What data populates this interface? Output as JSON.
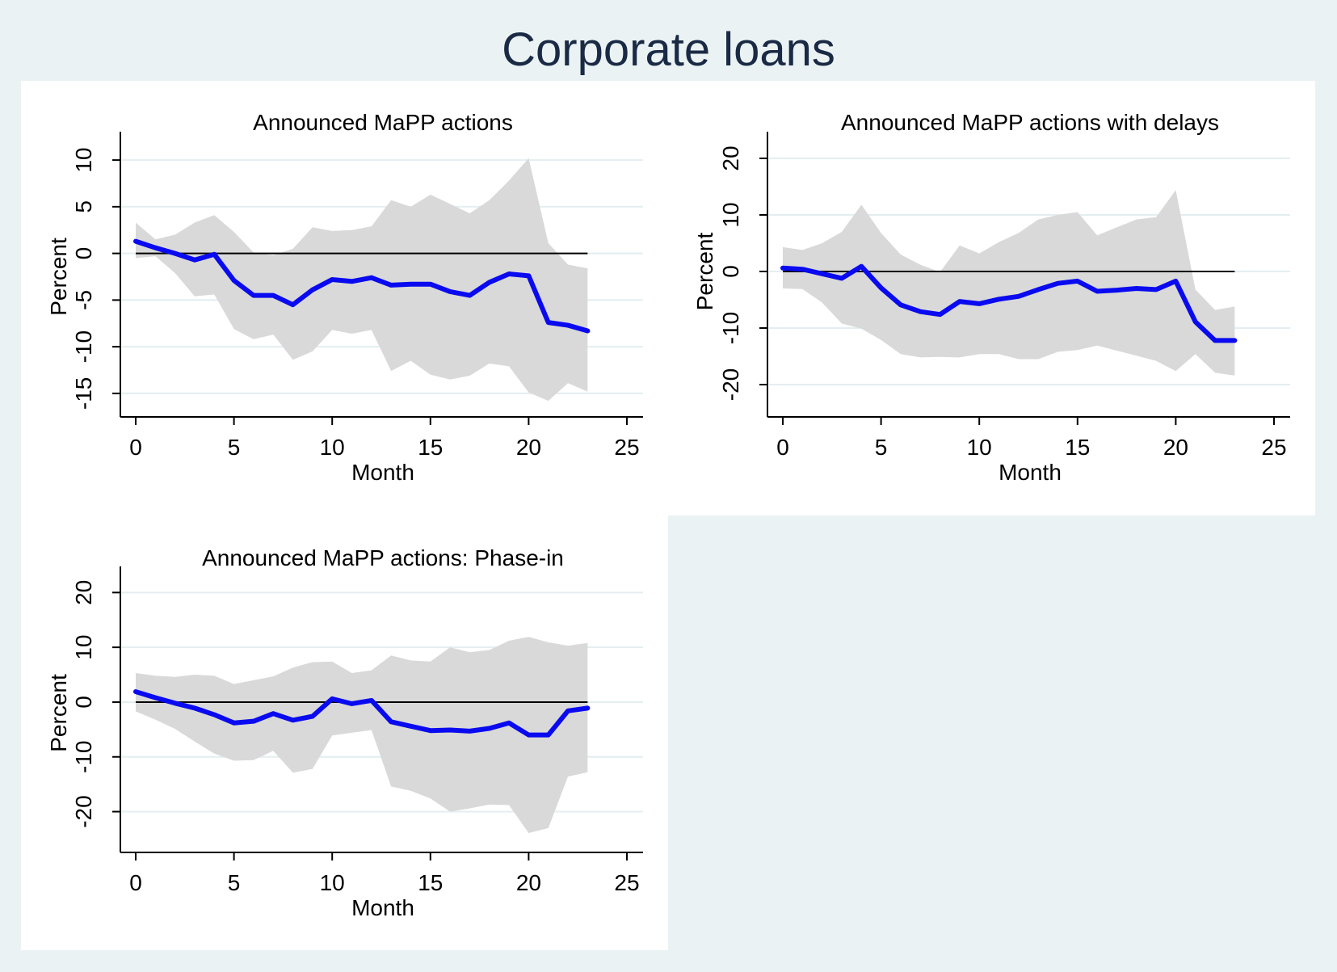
{
  "figure": {
    "title": "Corporate loans"
  },
  "chart_data": [
    {
      "type": "line",
      "title": "Announced MaPP actions",
      "xlabel": "Month",
      "ylabel": "Percent",
      "xlim": [
        0,
        25
      ],
      "ylim": [
        -17,
        12
      ],
      "xticks": [
        0,
        5,
        10,
        15,
        20,
        25
      ],
      "yticks": [
        -15,
        -10,
        -5,
        0,
        5,
        10
      ],
      "grid": true,
      "legend": "none",
      "colors": {
        "line": "#0a0af0",
        "band": "#d9d9d9",
        "zero": "#000000"
      },
      "zero_line": {
        "y": 0,
        "x_range": [
          0,
          23
        ]
      },
      "series": [
        {
          "x": [
            0,
            1,
            2,
            3,
            4,
            5,
            6,
            7,
            8,
            9,
            10,
            11,
            12,
            13,
            14,
            15,
            16,
            17,
            18,
            19,
            20,
            21,
            22,
            23
          ],
          "values": [
            1.3,
            0.6,
            0.0,
            -0.7,
            -0.1,
            -2.9,
            -4.5,
            -4.5,
            -5.5,
            -3.9,
            -2.8,
            -3.0,
            -2.6,
            -3.4,
            -3.3,
            -3.3,
            -4.1,
            -4.5,
            -3.1,
            -2.2,
            -2.4,
            -7.4,
            -7.7,
            -8.3
          ]
        }
      ],
      "band": {
        "upper": [
          3.3,
          1.5,
          2.0,
          3.3,
          4.1,
          2.3,
          0.1,
          -0.2,
          0.5,
          2.8,
          2.4,
          2.5,
          2.9,
          5.7,
          5.0,
          6.3,
          5.3,
          4.3,
          5.7,
          7.8,
          10.2,
          1.1,
          -1.2,
          -1.6
        ],
        "lower": [
          -0.5,
          -0.3,
          -2.1,
          -4.6,
          -4.4,
          -8.1,
          -9.2,
          -8.7,
          -11.4,
          -10.5,
          -8.2,
          -8.6,
          -8.2,
          -12.6,
          -11.5,
          -13.0,
          -13.5,
          -13.1,
          -11.8,
          -12.1,
          -14.9,
          -15.8,
          -13.9,
          -14.8
        ]
      }
    },
    {
      "type": "line",
      "title": "Announced MaPP actions with delays",
      "xlabel": "Month",
      "ylabel": "Percent",
      "xlim": [
        0,
        25
      ],
      "ylim": [
        -23,
        23
      ],
      "xticks": [
        0,
        5,
        10,
        15,
        20,
        25
      ],
      "yticks": [
        -20,
        -10,
        0,
        10,
        20
      ],
      "grid": true,
      "legend": "none",
      "colors": {
        "line": "#0a0af0",
        "band": "#d9d9d9",
        "zero": "#000000"
      },
      "zero_line": {
        "y": 0,
        "x_range": [
          0,
          23
        ]
      },
      "series": [
        {
          "x": [
            0,
            1,
            2,
            3,
            4,
            5,
            6,
            7,
            8,
            9,
            10,
            11,
            12,
            13,
            14,
            15,
            16,
            17,
            18,
            19,
            20,
            21,
            22,
            23
          ],
          "values": [
            0.6,
            0.4,
            -0.4,
            -1.2,
            0.9,
            -2.9,
            -5.9,
            -7.1,
            -7.6,
            -5.3,
            -5.7,
            -4.9,
            -4.4,
            -3.2,
            -2.1,
            -1.7,
            -3.5,
            -3.3,
            -3.0,
            -3.2,
            -1.7,
            -8.9,
            -12.2,
            -12.2
          ]
        }
      ],
      "band": {
        "upper": [
          4.3,
          3.8,
          5.0,
          7.0,
          11.8,
          6.8,
          3.0,
          1.2,
          -0.1,
          4.6,
          3.2,
          5.2,
          6.8,
          9.2,
          10.0,
          10.5,
          6.4,
          7.8,
          9.2,
          9.6,
          14.4,
          -3.2,
          -6.8,
          -6.2
        ],
        "lower": [
          -3.0,
          -3.1,
          -5.5,
          -9.2,
          -10.1,
          -12.1,
          -14.6,
          -15.2,
          -15.1,
          -15.2,
          -14.6,
          -14.6,
          -15.5,
          -15.5,
          -14.2,
          -13.9,
          -13.1,
          -14.0,
          -14.9,
          -15.8,
          -17.6,
          -14.6,
          -17.9,
          -18.4
        ]
      }
    },
    {
      "type": "line",
      "title": "Announced MaPP actions: Phase-in",
      "xlabel": "Month",
      "ylabel": "Percent",
      "xlim": [
        0,
        25
      ],
      "ylim": [
        -27,
        23
      ],
      "xticks": [
        0,
        5,
        10,
        15,
        20,
        25
      ],
      "yticks": [
        -20,
        -10,
        0,
        10,
        20
      ],
      "grid": true,
      "legend": "none",
      "colors": {
        "line": "#0a0af0",
        "band": "#d9d9d9",
        "zero": "#000000"
      },
      "zero_line": {
        "y": 0,
        "x_range": [
          0,
          23
        ]
      },
      "series": [
        {
          "x": [
            0,
            1,
            2,
            3,
            4,
            5,
            6,
            7,
            8,
            9,
            10,
            11,
            12,
            13,
            14,
            15,
            16,
            17,
            18,
            19,
            20,
            21,
            22,
            23
          ],
          "values": [
            1.9,
            0.8,
            -0.2,
            -1.1,
            -2.3,
            -3.8,
            -3.5,
            -2.1,
            -3.3,
            -2.6,
            0.6,
            -0.3,
            0.3,
            -3.6,
            -4.4,
            -5.2,
            -5.1,
            -5.3,
            -4.8,
            -3.8,
            -6.0,
            -6.0,
            -1.6,
            -1.1
          ]
        }
      ],
      "band": {
        "upper": [
          5.3,
          4.8,
          4.6,
          5.0,
          4.8,
          3.3,
          4.0,
          4.7,
          6.3,
          7.3,
          7.4,
          5.3,
          5.8,
          8.5,
          7.6,
          7.4,
          10.0,
          9.1,
          9.5,
          11.2,
          11.9,
          10.9,
          10.3,
          10.8
        ],
        "lower": [
          -1.7,
          -3.2,
          -4.9,
          -7.2,
          -9.4,
          -10.7,
          -10.6,
          -8.9,
          -12.9,
          -12.2,
          -6.1,
          -5.6,
          -5.1,
          -15.4,
          -16.2,
          -17.6,
          -20.0,
          -19.4,
          -18.7,
          -18.8,
          -23.9,
          -23.0,
          -13.6,
          -12.8
        ]
      }
    }
  ]
}
